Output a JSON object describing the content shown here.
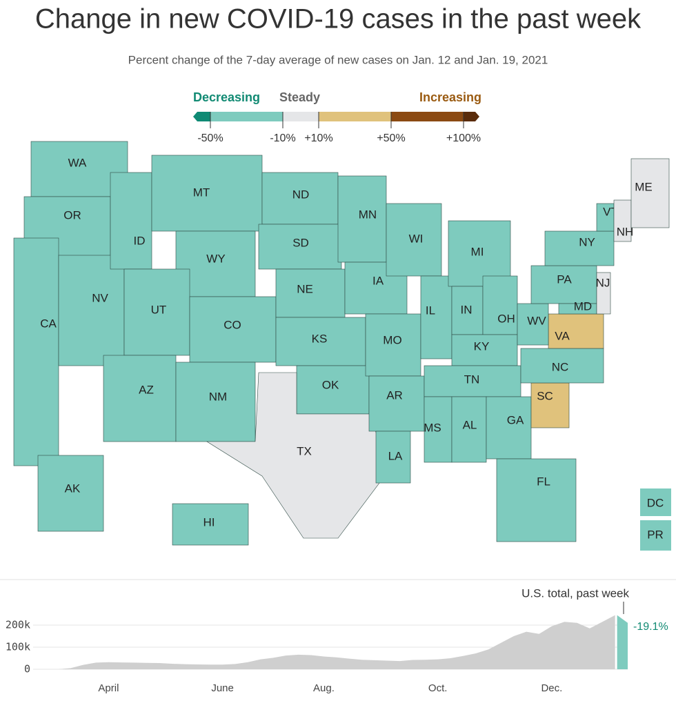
{
  "header": {
    "title": "Change in new COVID-19 cases in the past week",
    "subtitle": "Percent change of the 7-day average of new cases on Jan. 12 and Jan. 19, 2021"
  },
  "legend": {
    "headings": [
      {
        "text": "Decreasing",
        "color": "#118a73"
      },
      {
        "text": "Steady",
        "color": "#666666"
      },
      {
        "text": "Increasing",
        "color": "#9a5b12"
      }
    ],
    "colors": [
      "#0f8a74",
      "#7ecbbe",
      "#e5e6e8",
      "#e0c27c",
      "#8b4a12",
      "#5a2c0b"
    ],
    "ticks": [
      {
        "value": -50,
        "label": "-50%"
      },
      {
        "value": -10,
        "label": "-10%"
      },
      {
        "value": 10,
        "label": "+10%"
      },
      {
        "value": 50,
        "label": "+50%"
      },
      {
        "value": 100,
        "label": "+100%"
      }
    ]
  },
  "map": {
    "status_colors": {
      "Decreasing": "#7ecbbe",
      "Steady": "#e5e6e8",
      "Increasing": "#e0c27c"
    },
    "states": [
      {
        "label": "WA",
        "status": "Decreasing"
      },
      {
        "label": "OR",
        "status": "Decreasing"
      },
      {
        "label": "CA",
        "status": "Decreasing"
      },
      {
        "label": "NV",
        "status": "Decreasing"
      },
      {
        "label": "ID",
        "status": "Decreasing"
      },
      {
        "label": "MT",
        "status": "Decreasing"
      },
      {
        "label": "WY",
        "status": "Decreasing"
      },
      {
        "label": "UT",
        "status": "Decreasing"
      },
      {
        "label": "AZ",
        "status": "Decreasing"
      },
      {
        "label": "CO",
        "status": "Decreasing"
      },
      {
        "label": "NM",
        "status": "Decreasing"
      },
      {
        "label": "ND",
        "status": "Decreasing"
      },
      {
        "label": "SD",
        "status": "Decreasing"
      },
      {
        "label": "NE",
        "status": "Decreasing"
      },
      {
        "label": "KS",
        "status": "Decreasing"
      },
      {
        "label": "OK",
        "status": "Decreasing"
      },
      {
        "label": "TX",
        "status": "Steady"
      },
      {
        "label": "MN",
        "status": "Decreasing"
      },
      {
        "label": "IA",
        "status": "Decreasing"
      },
      {
        "label": "MO",
        "status": "Decreasing"
      },
      {
        "label": "AR",
        "status": "Decreasing"
      },
      {
        "label": "LA",
        "status": "Decreasing"
      },
      {
        "label": "WI",
        "status": "Decreasing"
      },
      {
        "label": "IL",
        "status": "Decreasing"
      },
      {
        "label": "MI",
        "status": "Decreasing"
      },
      {
        "label": "IN",
        "status": "Decreasing"
      },
      {
        "label": "OH",
        "status": "Decreasing"
      },
      {
        "label": "KY",
        "status": "Decreasing"
      },
      {
        "label": "TN",
        "status": "Decreasing"
      },
      {
        "label": "MS",
        "status": "Decreasing"
      },
      {
        "label": "AL",
        "status": "Decreasing"
      },
      {
        "label": "GA",
        "status": "Decreasing"
      },
      {
        "label": "FL",
        "status": "Decreasing"
      },
      {
        "label": "SC",
        "status": "Increasing"
      },
      {
        "label": "NC",
        "status": "Decreasing"
      },
      {
        "label": "VA",
        "status": "Increasing"
      },
      {
        "label": "WV",
        "status": "Decreasing"
      },
      {
        "label": "PA",
        "status": "Decreasing"
      },
      {
        "label": "NY",
        "status": "Decreasing"
      },
      {
        "label": "MD",
        "status": "Decreasing"
      },
      {
        "label": "NJ",
        "status": "Steady"
      },
      {
        "label": "VT",
        "status": "Decreasing"
      },
      {
        "label": "NH",
        "status": "Steady"
      },
      {
        "label": "ME",
        "status": "Steady"
      },
      {
        "label": "AK",
        "status": "Decreasing"
      },
      {
        "label": "HI",
        "status": "Decreasing"
      },
      {
        "label": "DC",
        "status": "Decreasing"
      },
      {
        "label": "PR",
        "status": "Decreasing"
      }
    ]
  },
  "chart_data": {
    "type": "area",
    "annotation": "U.S. total, past week",
    "highlight_label": "-19.1%",
    "color": "#cfcfcf",
    "highlight_color": "#7ecbbe",
    "categories": [
      null,
      null,
      null,
      null,
      "April",
      null,
      null,
      null,
      null,
      null,
      null,
      null,
      null,
      "June",
      null,
      null,
      null,
      null,
      null,
      null,
      null,
      "Aug.",
      null,
      null,
      null,
      null,
      null,
      null,
      null,
      null,
      "Oct.",
      null,
      null,
      null,
      null,
      null,
      null,
      null,
      null,
      "Dec.",
      null,
      null,
      null,
      null,
      null,
      null
    ],
    "values": [
      0,
      5000,
      20000,
      30000,
      32000,
      31000,
      30000,
      29000,
      28000,
      25000,
      23000,
      22000,
      21000,
      21000,
      24000,
      32000,
      45000,
      52000,
      62000,
      66000,
      64000,
      58000,
      54000,
      48000,
      43000,
      41000,
      39000,
      37000,
      42000,
      43000,
      45000,
      50000,
      60000,
      72000,
      90000,
      120000,
      150000,
      170000,
      160000,
      195000,
      215000,
      210000,
      185000,
      215000,
      245000,
      210000
    ],
    "ylim": [
      0,
      250000
    ],
    "yticks": [
      0,
      {
        "value": 100000,
        "label": "100k"
      },
      {
        "value": 200000,
        "label": "200k"
      }
    ]
  }
}
